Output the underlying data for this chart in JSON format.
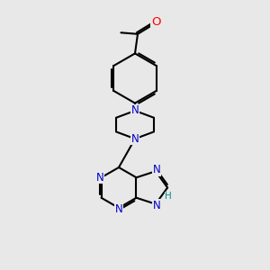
{
  "background_color": "#e8e8e8",
  "bond_color": "#000000",
  "nitrogen_color": "#0000cc",
  "oxygen_color": "#ff0000",
  "hydrogen_color": "#009090",
  "bond_width": 1.5,
  "figsize": [
    3.0,
    3.0
  ],
  "dpi": 100,
  "xlim": [
    0,
    10
  ],
  "ylim": [
    0,
    10
  ]
}
